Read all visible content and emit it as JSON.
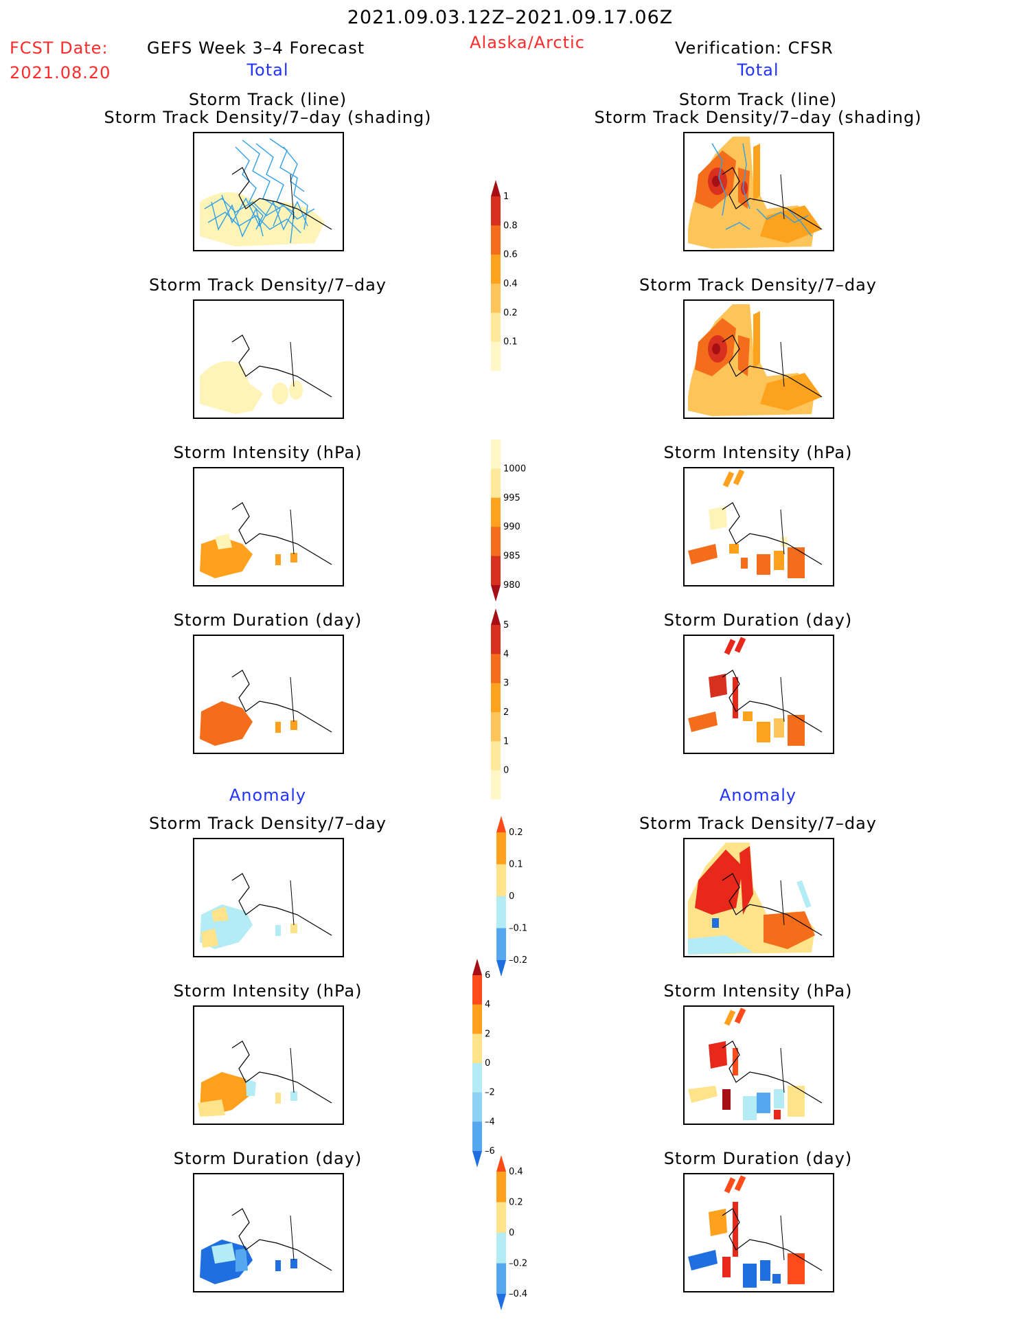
{
  "header": {
    "date_range": "2021.09.03.12Z–2021.09.17.06Z",
    "fcst_label": "FCST Date:",
    "fcst_date": "2021.08.20",
    "forecast_title": "GEFS Week 3–4 Forecast",
    "region": "Alaska/Arctic",
    "verification": "Verification: CFSR",
    "left_total": "Total",
    "right_total": "Total",
    "left_anomaly": "Anomaly",
    "right_anomaly": "Anomaly"
  },
  "panels": {
    "total": {
      "track_line_title": "Storm Track (line)",
      "track_shading_title": "Storm Track Density/7–day (shading)",
      "density_title": "Storm Track Density/7–day",
      "intensity_title": "Storm Intensity (hPa)",
      "duration_title": "Storm Duration (day)"
    },
    "anomaly": {
      "density_title": "Storm Track Density/7–day",
      "intensity_title": "Storm Intensity (hPa)",
      "duration_title": "Storm Duration (day)"
    }
  },
  "colorbars": {
    "density_total": {
      "labels": [
        "1",
        "0.8",
        "0.6",
        "0.4",
        "0.2",
        "0.1"
      ],
      "colors": [
        "#a50f15",
        "#d7301f",
        "#f46d1a",
        "#fda21c",
        "#fdc45a",
        "#fee89a",
        "#fff8c6"
      ]
    },
    "intensity_total": {
      "labels": [
        "1000",
        "995",
        "990",
        "985",
        "980"
      ],
      "colors": [
        "#fff8c6",
        "#fee89a",
        "#fda21c",
        "#f46d1a",
        "#d7301f",
        "#a50f15"
      ]
    },
    "duration_total": {
      "labels": [
        "5",
        "4",
        "3",
        "2",
        "1",
        "0"
      ],
      "colors": [
        "#a50f15",
        "#d7301f",
        "#f46d1a",
        "#fda21c",
        "#fdc45a",
        "#fee89a",
        "#fff8c6"
      ]
    },
    "density_anom": {
      "labels": [
        "0.2",
        "0.1",
        "0",
        "–0.1",
        "–0.2"
      ],
      "colors": [
        "#ff4a1a",
        "#ffa11c",
        "#ffe38a",
        "#b4ecf5",
        "#55a8f0",
        "#1f6fe0"
      ]
    },
    "intensity_anom": {
      "labels": [
        "6",
        "4",
        "2",
        "0",
        "–2",
        "–4",
        "–6"
      ],
      "colors": [
        "#a50f15",
        "#ff4a1a",
        "#ffa11c",
        "#ffe38a",
        "#b4ecf5",
        "#8fd0f5",
        "#55a8f0",
        "#1f6fe0"
      ]
    },
    "duration_anom": {
      "labels": [
        "0.4",
        "0.2",
        "0",
        "–0.2",
        "–0.4"
      ],
      "colors": [
        "#ff4a1a",
        "#ffa11c",
        "#ffe38a",
        "#b4ecf5",
        "#55a8f0",
        "#1f6fe0"
      ]
    }
  },
  "colors": {
    "track_line": "#2f9fe8",
    "pale_yellow": "#fff4b8",
    "orange": "#ffa11c",
    "dark_orange": "#f46d1a",
    "red": "#e8281a",
    "dark_red": "#a50f15",
    "light_blue": "#b4ecf5",
    "blue": "#1f6fe0"
  }
}
